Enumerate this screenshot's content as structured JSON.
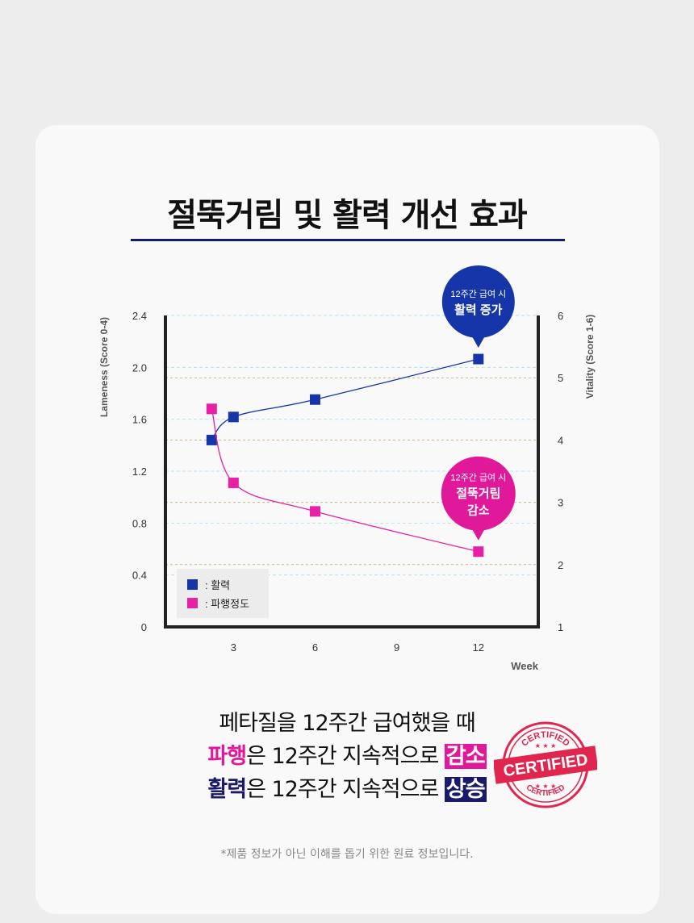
{
  "title": "절뚝거림 및 활력 개선 효과",
  "chart_data": {
    "type": "line",
    "x": [
      2.2,
      3,
      6,
      12
    ],
    "xticks": [
      3,
      6,
      9,
      12
    ],
    "xlabel": "Week",
    "ylabel_left": "Lameness (Score 0-4)",
    "ylabel_right": "Vitality (Score 1-6)",
    "ylim_left": [
      0,
      2.4
    ],
    "yticks_left": [
      "0",
      "0.4",
      "0.8",
      "1.2",
      "1.6",
      "2.0",
      "2.4"
    ],
    "ylim_right": [
      1,
      6
    ],
    "yticks_right": [
      "1",
      "2",
      "3",
      "4",
      "5",
      "6"
    ],
    "legend_position": "bottom-left",
    "series": [
      {
        "name": ": 활력",
        "axis": "right",
        "color": "#1535a8",
        "x": [
          2.2,
          3,
          6,
          12
        ],
        "values": [
          4.0,
          4.37,
          4.65,
          5.3
        ]
      },
      {
        "name": ": 파행정도",
        "axis": "left",
        "color": "#e621a6",
        "x": [
          2.2,
          3,
          6,
          12
        ],
        "values": [
          1.68,
          1.11,
          0.89,
          0.58
        ]
      }
    ],
    "annotations": [
      {
        "series": 0,
        "line1": "12주간 급여 시",
        "line2": "활력 증가",
        "line3": "",
        "color": "#1535a8"
      },
      {
        "series": 1,
        "line1": "12주간 급여 시",
        "line2": "절뚝거림",
        "line3": "감소",
        "color": "#e0199b"
      }
    ]
  },
  "summary": {
    "line1": "페타질을 12주간 급여했을 때",
    "line2_hl": "파행",
    "line2_mid": "은 12주간 지속적으로 ",
    "line2_box": "감소",
    "line3_hl": "활력",
    "line3_mid": "은 12주간 지속적으로 ",
    "line3_box": "상승"
  },
  "stamp": {
    "top": "CERTIFIED",
    "center": "CERTIFIED",
    "bottom": "CERTIFIED",
    "color": "#e0254f"
  },
  "footnote": "*제품 정보가 아닌 이해를 돕기 위한 원료 정보입니다."
}
